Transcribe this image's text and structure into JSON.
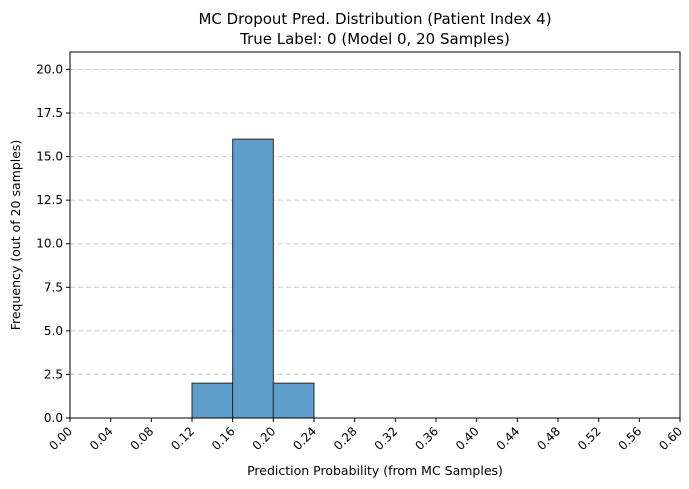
{
  "chart_data": {
    "type": "bar",
    "title": "MC Dropout Pred. Distribution (Patient Index 4)",
    "subtitle": "True Label: 0 (Model 0, 20 Samples)",
    "xlabel": "Prediction Probability (from MC Samples)",
    "ylabel": "Frequency (out of 20 samples)",
    "xlim": [
      0.0,
      0.6
    ],
    "ylim": [
      0,
      21
    ],
    "x_ticks": [
      "0.00",
      "0.04",
      "0.08",
      "0.12",
      "0.16",
      "0.20",
      "0.24",
      "0.28",
      "0.32",
      "0.36",
      "0.40",
      "0.44",
      "0.48",
      "0.52",
      "0.56",
      "0.60"
    ],
    "y_ticks": [
      "0.0",
      "2.5",
      "5.0",
      "7.5",
      "10.0",
      "12.5",
      "15.0",
      "17.5",
      "20.0"
    ],
    "bins": [
      {
        "start": 0.12,
        "end": 0.16,
        "count": 2
      },
      {
        "start": 0.16,
        "end": 0.2,
        "count": 16
      },
      {
        "start": 0.2,
        "end": 0.24,
        "count": 2
      }
    ],
    "grid": "y-dashed",
    "bar_color": "#5f9ecb",
    "bar_edge_color": "#2b2b2b"
  }
}
